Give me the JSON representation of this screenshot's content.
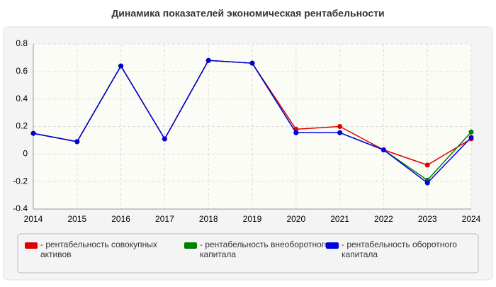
{
  "chart_data": {
    "type": "line",
    "title": "Динамика показателей экономическая рентабельности",
    "x": [
      2014,
      2015,
      2016,
      2017,
      2018,
      2019,
      2020,
      2021,
      2022,
      2023,
      2024
    ],
    "xlim": [
      2014,
      2024
    ],
    "xticks": [
      2014,
      2015,
      2016,
      2017,
      2018,
      2019,
      2020,
      2021,
      2022,
      2023,
      2024
    ],
    "ylim": [
      -0.4,
      0.8
    ],
    "yticks": [
      -0.4,
      -0.2,
      0,
      0.2,
      0.4,
      0.6,
      0.8
    ],
    "grid": true,
    "legend": "bottom",
    "series": [
      {
        "name": "- рентабельность совокупных активов",
        "color": "#e00000",
        "values": [
          0.15,
          0.09,
          0.64,
          0.11,
          0.68,
          0.66,
          0.18,
          0.2,
          0.03,
          -0.08,
          0.11
        ]
      },
      {
        "name": "- рентабельность внеоборотного капитала",
        "color": "#008000",
        "values": [
          0.15,
          0.09,
          0.64,
          0.11,
          0.68,
          0.66,
          0.155,
          0.155,
          0.03,
          -0.19,
          0.16
        ]
      },
      {
        "name": "- рентабельность оборотного капитала",
        "color": "#0000e0",
        "values": [
          0.15,
          0.09,
          0.64,
          0.11,
          0.68,
          0.66,
          0.155,
          0.155,
          0.03,
          -0.21,
          0.12
        ]
      }
    ]
  }
}
